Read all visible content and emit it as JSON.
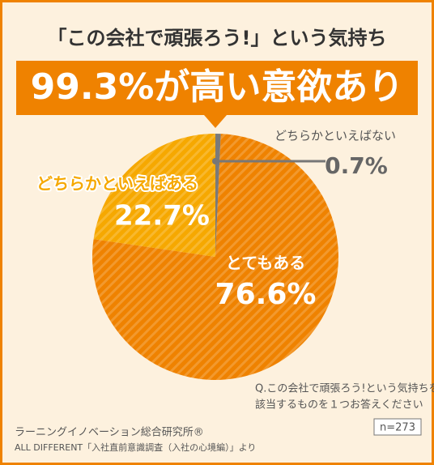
{
  "chart_data": {
    "type": "pie",
    "subtitle": "「この会社で頑張ろう!」という気持ち",
    "title": "99.3%が高い意欲あり",
    "categories": [
      "どちらかといえばない",
      "とてもある",
      "どちらかといえばある"
    ],
    "values": [
      0.7,
      76.6,
      22.7
    ],
    "value_labels": [
      "0.7%",
      "76.6%",
      "22.7%"
    ],
    "colors": [
      "#7a7a7a",
      "#ef8200",
      "#f6a800"
    ],
    "question": [
      "Q.この会社で頑張ろう!という気持ちをどの程度お持ちですか",
      "該当するものを１つお答えください"
    ],
    "source": "ラーニングイノベーション総合研究所®",
    "survey": "ALL DIFFERENT「入社直前意識調査（入社の心境編）」より",
    "sample": "n=273"
  }
}
